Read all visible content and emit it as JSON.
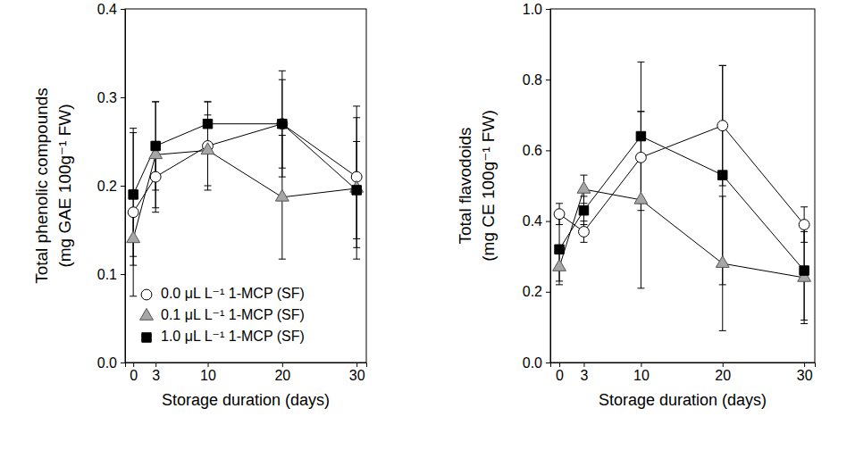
{
  "chart_data": [
    {
      "type": "line",
      "ylabel": [
        "Total phenolic compounds",
        "(mg GAE 100g⁻¹ FW)"
      ],
      "xlabel": "Storage duration (days)",
      "x": [
        0,
        3,
        10,
        20,
        30
      ],
      "xlim": [
        -1.1,
        31.3
      ],
      "xticks": [
        0,
        3,
        10,
        20,
        30
      ],
      "ylim": [
        0,
        0.4
      ],
      "yticks": [
        {
          "value": 0,
          "label": "0.0"
        },
        0.1,
        0.2,
        0.3,
        0.4
      ],
      "legend": "lower left",
      "series": [
        {
          "name": "0.0 μL L⁻¹ 1-MCP (SF)",
          "color": "#ffffff",
          "marker": "circle",
          "values": [
            0.17,
            0.21,
            0.245,
            0.27,
            0.21
          ],
          "errors": [
            0.095,
            0.04,
            0.05,
            0.06,
            0.08
          ]
        },
        {
          "name": "0.1 μL L⁻¹ 1-MCP (SF)",
          "color": "#a6a6a6",
          "marker": "triangle",
          "values": [
            0.14,
            0.235,
            0.24,
            0.187,
            0.197
          ],
          "errors": [
            0.03,
            0.06,
            0.04,
            0.07,
            0.08
          ]
        },
        {
          "name": "1.0 μL L⁻¹ 1-MCP (SF)",
          "color": "#000000",
          "marker": "square",
          "values": [
            0.19,
            0.245,
            0.27,
            0.27,
            0.195
          ],
          "errors": [
            0.07,
            0.05,
            0.025,
            0.05,
            0.055
          ]
        }
      ]
    },
    {
      "type": "line",
      "ylabel": [
        "Total flavodoids",
        "(mg CE 100g⁻¹ FW)"
      ],
      "xlabel": "Storage duration (days)",
      "x": [
        0,
        3,
        10,
        20,
        30
      ],
      "xlim": [
        -1.1,
        31.3
      ],
      "xticks": [
        0,
        3,
        10,
        20,
        30
      ],
      "ylim": [
        0,
        1
      ],
      "yticks": [
        {
          "value": 0,
          "label": "0.0"
        },
        0.2,
        0.4,
        0.6,
        0.8,
        {
          "value": 1,
          "label": "1.0"
        }
      ],
      "series": [
        {
          "color": "#ffffff",
          "marker": "circle",
          "values": [
            0.42,
            0.37,
            0.58,
            0.67,
            0.39
          ],
          "errors": [
            0.03,
            0.03,
            0.13,
            0.17,
            0.05
          ]
        },
        {
          "color": "#a6a6a6",
          "marker": "triangle",
          "values": [
            0.27,
            0.49,
            0.46,
            0.28,
            0.24
          ],
          "errors": [
            0.04,
            0.04,
            0.25,
            0.19,
            0.13
          ]
        },
        {
          "color": "#000000",
          "marker": "square",
          "values": [
            0.32,
            0.43,
            0.64,
            0.53,
            0.26
          ],
          "errors": [
            0.1,
            0.04,
            0.21,
            0.31,
            0.14
          ]
        }
      ]
    }
  ]
}
